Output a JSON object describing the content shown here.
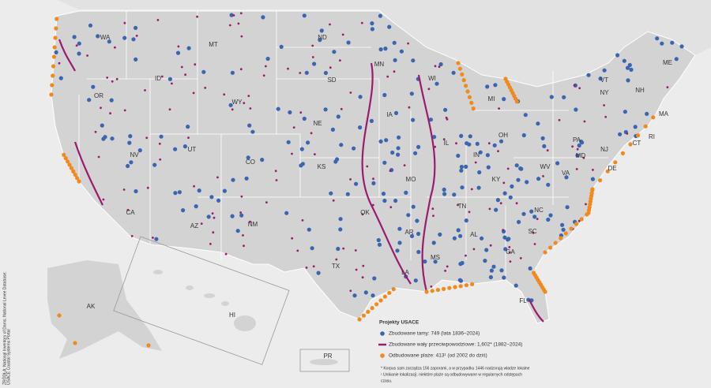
{
  "map": {
    "state_labels": [
      "WA",
      "MT",
      "ND",
      "MN",
      "ME",
      "ID",
      "OR",
      "SD",
      "WI",
      "VT",
      "NH",
      "MI",
      "NY",
      "MA",
      "WY",
      "IA",
      "NE",
      "PA",
      "CT",
      "RI",
      "NV",
      "UT",
      "IL",
      "OH",
      "NJ",
      "CO",
      "IN",
      "MD",
      "DE",
      "WV",
      "VA",
      "KS",
      "MO",
      "KY",
      "CA",
      "OK",
      "TN",
      "NC",
      "AZ",
      "NM",
      "AR",
      "SC",
      "AL",
      "GA",
      "MS",
      "TX",
      "LA",
      "FL",
      "AK",
      "HI",
      "PR"
    ],
    "legend": {
      "title": "Projekty USACE",
      "items": [
        "Zbudowane tamy: 749 (lata 1836–2024)",
        "Zbudowane wały przeciwpowodziowe: 1,602* (1882–2024)",
        "Odbudowane plaże: 413¹ (od 2002 do dziś)"
      ]
    },
    "footnotes": [
      "* Korpus sam zarządza 156 zaporami, a w przypadku 1446 nadzorują władze lokalne",
      "¹ Unikanie lokalizacji; niektóre plaże są odbudowywane w regularnych odstępach",
      "czasu."
    ],
    "source": [
      "ŹRÓDŁA: National Inventory of Dams; National Levee Database;",
      "USACE Coastal Systems Portal"
    ]
  }
}
